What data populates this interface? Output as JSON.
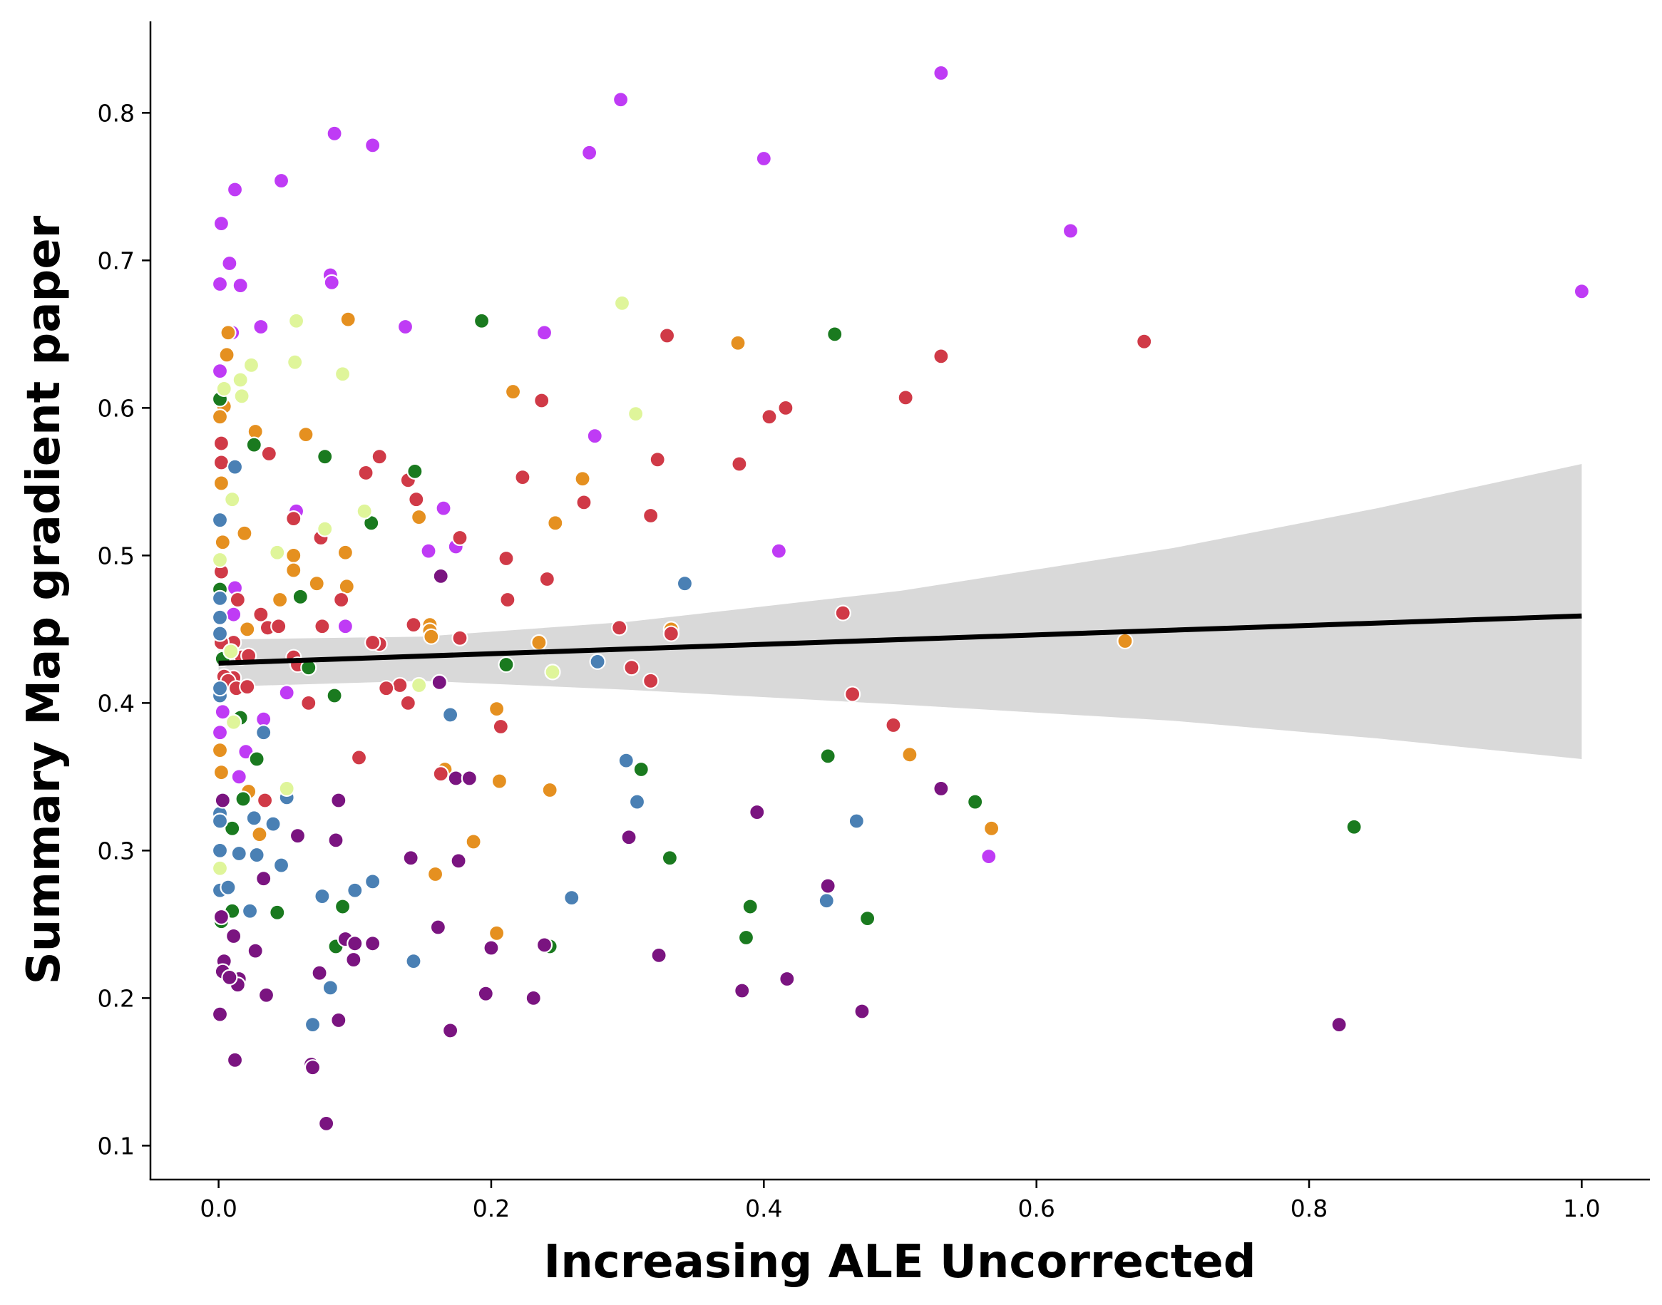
{
  "chart_data": {
    "type": "scatter",
    "xlabel": "Increasing ALE Uncorrected",
    "ylabel": "Summary Map gradient paper",
    "xlim": [
      -0.05,
      1.05
    ],
    "ylim": [
      0.077,
      0.862
    ],
    "x_ticks": [
      "0.0",
      "0.2",
      "0.4",
      "0.6",
      "0.8",
      "1.0"
    ],
    "y_ticks": [
      "0.1",
      "0.2",
      "0.3",
      "0.4",
      "0.5",
      "0.6",
      "0.7",
      "0.8"
    ],
    "grid": false,
    "legend": "none",
    "regression": {
      "line": [
        [
          0.0,
          0.427
        ],
        [
          1.0,
          0.459
        ]
      ],
      "ci_upper": [
        [
          0.0,
          0.443
        ],
        [
          0.15,
          0.445
        ],
        [
          0.3,
          0.455
        ],
        [
          0.5,
          0.476
        ],
        [
          0.7,
          0.505
        ],
        [
          0.85,
          0.532
        ],
        [
          1.0,
          0.562
        ]
      ],
      "ci_lower": [
        [
          0.0,
          0.411
        ],
        [
          0.15,
          0.415
        ],
        [
          0.3,
          0.409
        ],
        [
          0.5,
          0.399
        ],
        [
          0.7,
          0.388
        ],
        [
          0.85,
          0.376
        ],
        [
          1.0,
          0.362
        ]
      ],
      "line_color": "#000000",
      "band_color": "#d9d9d9"
    },
    "series": [
      {
        "color": "#bf3bf5",
        "points": [
          [
            0.53,
            0.827
          ],
          [
            0.295,
            0.809
          ],
          [
            0.085,
            0.786
          ],
          [
            0.113,
            0.778
          ],
          [
            0.272,
            0.773
          ],
          [
            0.4,
            0.769
          ],
          [
            0.012,
            0.748
          ],
          [
            0.046,
            0.754
          ],
          [
            0.002,
            0.725
          ],
          [
            0.625,
            0.72
          ],
          [
            0.008,
            0.698
          ],
          [
            1.0,
            0.679
          ],
          [
            0.082,
            0.69
          ],
          [
            0.083,
            0.685
          ],
          [
            0.001,
            0.684
          ],
          [
            0.016,
            0.683
          ],
          [
            0.01,
            0.651
          ],
          [
            0.031,
            0.655
          ],
          [
            0.137,
            0.655
          ],
          [
            0.239,
            0.651
          ],
          [
            0.001,
            0.625
          ],
          [
            0.276,
            0.581
          ],
          [
            0.165,
            0.532
          ],
          [
            0.057,
            0.53
          ],
          [
            0.154,
            0.503
          ],
          [
            0.174,
            0.506
          ],
          [
            0.411,
            0.503
          ],
          [
            0.012,
            0.478
          ],
          [
            0.093,
            0.452
          ],
          [
            0.011,
            0.46
          ],
          [
            0.05,
            0.407
          ],
          [
            0.003,
            0.394
          ],
          [
            0.001,
            0.38
          ],
          [
            0.033,
            0.389
          ],
          [
            0.02,
            0.367
          ],
          [
            0.565,
            0.296
          ],
          [
            0.015,
            0.35
          ]
        ]
      },
      {
        "color": "#e59020",
        "points": [
          [
            0.007,
            0.651
          ],
          [
            0.381,
            0.644
          ],
          [
            0.095,
            0.66
          ],
          [
            0.006,
            0.636
          ],
          [
            0.216,
            0.611
          ],
          [
            0.004,
            0.601
          ],
          [
            0.001,
            0.594
          ],
          [
            0.027,
            0.584
          ],
          [
            0.064,
            0.582
          ],
          [
            0.267,
            0.552
          ],
          [
            0.002,
            0.549
          ],
          [
            0.019,
            0.515
          ],
          [
            0.147,
            0.526
          ],
          [
            0.247,
            0.522
          ],
          [
            0.055,
            0.5
          ],
          [
            0.093,
            0.502
          ],
          [
            0.003,
            0.509
          ],
          [
            0.055,
            0.49
          ],
          [
            0.094,
            0.479
          ],
          [
            0.072,
            0.481
          ],
          [
            0.045,
            0.47
          ],
          [
            0.155,
            0.453
          ],
          [
            0.155,
            0.449
          ],
          [
            0.156,
            0.445
          ],
          [
            0.332,
            0.45
          ],
          [
            0.235,
            0.441
          ],
          [
            0.021,
            0.45
          ],
          [
            0.665,
            0.442
          ],
          [
            0.204,
            0.396
          ],
          [
            0.206,
            0.347
          ],
          [
            0.243,
            0.341
          ],
          [
            0.166,
            0.355
          ],
          [
            0.507,
            0.365
          ],
          [
            0.001,
            0.368
          ],
          [
            0.002,
            0.353
          ],
          [
            0.187,
            0.306
          ],
          [
            0.03,
            0.311
          ],
          [
            0.567,
            0.315
          ],
          [
            0.159,
            0.284
          ],
          [
            0.204,
            0.244
          ],
          [
            0.022,
            0.34
          ]
        ]
      },
      {
        "color": "#d03a47",
        "points": [
          [
            0.679,
            0.645
          ],
          [
            0.329,
            0.649
          ],
          [
            0.53,
            0.635
          ],
          [
            0.504,
            0.607
          ],
          [
            0.237,
            0.605
          ],
          [
            0.416,
            0.6
          ],
          [
            0.404,
            0.594
          ],
          [
            0.002,
            0.576
          ],
          [
            0.037,
            0.569
          ],
          [
            0.118,
            0.567
          ],
          [
            0.322,
            0.565
          ],
          [
            0.382,
            0.562
          ],
          [
            0.002,
            0.563
          ],
          [
            0.108,
            0.556
          ],
          [
            0.223,
            0.553
          ],
          [
            0.139,
            0.551
          ],
          [
            0.145,
            0.538
          ],
          [
            0.268,
            0.536
          ],
          [
            0.317,
            0.527
          ],
          [
            0.055,
            0.525
          ],
          [
            0.177,
            0.512
          ],
          [
            0.075,
            0.512
          ],
          [
            0.211,
            0.498
          ],
          [
            0.241,
            0.484
          ],
          [
            0.002,
            0.489
          ],
          [
            0.212,
            0.47
          ],
          [
            0.09,
            0.47
          ],
          [
            0.458,
            0.461
          ],
          [
            0.014,
            0.47
          ],
          [
            0.031,
            0.46
          ],
          [
            0.036,
            0.451
          ],
          [
            0.044,
            0.452
          ],
          [
            0.076,
            0.452
          ],
          [
            0.143,
            0.453
          ],
          [
            0.294,
            0.451
          ],
          [
            0.332,
            0.447
          ],
          [
            0.177,
            0.444
          ],
          [
            0.118,
            0.44
          ],
          [
            0.113,
            0.441
          ],
          [
            0.011,
            0.441
          ],
          [
            0.002,
            0.441
          ],
          [
            0.017,
            0.431
          ],
          [
            0.055,
            0.431
          ],
          [
            0.058,
            0.426
          ],
          [
            0.011,
            0.417
          ],
          [
            0.004,
            0.418
          ],
          [
            0.317,
            0.415
          ],
          [
            0.162,
            0.414
          ],
          [
            0.133,
            0.412
          ],
          [
            0.123,
            0.41
          ],
          [
            0.007,
            0.415
          ],
          [
            0.013,
            0.41
          ],
          [
            0.021,
            0.411
          ],
          [
            0.465,
            0.406
          ],
          [
            0.066,
            0.4
          ],
          [
            0.139,
            0.4
          ],
          [
            0.303,
            0.424
          ],
          [
            0.495,
            0.385
          ],
          [
            0.207,
            0.384
          ],
          [
            0.103,
            0.363
          ],
          [
            0.163,
            0.352
          ],
          [
            0.034,
            0.334
          ],
          [
            0.022,
            0.432
          ]
        ]
      },
      {
        "color": "#1a7a1f",
        "points": [
          [
            0.193,
            0.659
          ],
          [
            0.452,
            0.65
          ],
          [
            0.001,
            0.606
          ],
          [
            0.026,
            0.575
          ],
          [
            0.078,
            0.567
          ],
          [
            0.144,
            0.557
          ],
          [
            0.112,
            0.522
          ],
          [
            0.06,
            0.472
          ],
          [
            0.001,
            0.477
          ],
          [
            0.066,
            0.424
          ],
          [
            0.211,
            0.426
          ],
          [
            0.085,
            0.405
          ],
          [
            0.016,
            0.39
          ],
          [
            0.028,
            0.362
          ],
          [
            0.447,
            0.364
          ],
          [
            0.31,
            0.355
          ],
          [
            0.555,
            0.333
          ],
          [
            0.018,
            0.335
          ],
          [
            0.01,
            0.315
          ],
          [
            0.331,
            0.295
          ],
          [
            0.833,
            0.316
          ],
          [
            0.39,
            0.262
          ],
          [
            0.091,
            0.262
          ],
          [
            0.043,
            0.258
          ],
          [
            0.01,
            0.259
          ],
          [
            0.476,
            0.254
          ],
          [
            0.387,
            0.241
          ],
          [
            0.243,
            0.235
          ],
          [
            0.086,
            0.235
          ],
          [
            0.002,
            0.252
          ],
          [
            0.003,
            0.43
          ]
        ]
      },
      {
        "color": "#4a80b4",
        "points": [
          [
            0.342,
            0.481
          ],
          [
            0.278,
            0.428
          ],
          [
            0.001,
            0.524
          ],
          [
            0.001,
            0.471
          ],
          [
            0.001,
            0.458
          ],
          [
            0.001,
            0.447
          ],
          [
            0.001,
            0.405
          ],
          [
            0.033,
            0.38
          ],
          [
            0.17,
            0.392
          ],
          [
            0.012,
            0.56
          ],
          [
            0.299,
            0.361
          ],
          [
            0.307,
            0.333
          ],
          [
            0.05,
            0.336
          ],
          [
            0.001,
            0.325
          ],
          [
            0.001,
            0.32
          ],
          [
            0.026,
            0.322
          ],
          [
            0.04,
            0.318
          ],
          [
            0.468,
            0.32
          ],
          [
            0.001,
            0.3
          ],
          [
            0.015,
            0.298
          ],
          [
            0.028,
            0.297
          ],
          [
            0.046,
            0.29
          ],
          [
            0.113,
            0.279
          ],
          [
            0.1,
            0.273
          ],
          [
            0.001,
            0.273
          ],
          [
            0.007,
            0.275
          ],
          [
            0.076,
            0.269
          ],
          [
            0.259,
            0.268
          ],
          [
            0.446,
            0.266
          ],
          [
            0.023,
            0.259
          ],
          [
            0.143,
            0.225
          ],
          [
            0.082,
            0.207
          ],
          [
            0.069,
            0.182
          ],
          [
            0.001,
            0.41
          ]
        ]
      },
      {
        "color": "#dff59a",
        "points": [
          [
            0.296,
            0.671
          ],
          [
            0.057,
            0.659
          ],
          [
            0.056,
            0.631
          ],
          [
            0.024,
            0.629
          ],
          [
            0.091,
            0.623
          ],
          [
            0.016,
            0.619
          ],
          [
            0.004,
            0.613
          ],
          [
            0.017,
            0.608
          ],
          [
            0.306,
            0.596
          ],
          [
            0.01,
            0.538
          ],
          [
            0.107,
            0.53
          ],
          [
            0.078,
            0.518
          ],
          [
            0.043,
            0.502
          ],
          [
            0.001,
            0.497
          ],
          [
            0.245,
            0.421
          ],
          [
            0.147,
            0.412
          ],
          [
            0.011,
            0.387
          ],
          [
            0.05,
            0.342
          ],
          [
            0.001,
            0.288
          ],
          [
            0.009,
            0.435
          ]
        ]
      },
      {
        "color": "#7a1480",
        "points": [
          [
            0.163,
            0.486
          ],
          [
            0.162,
            0.414
          ],
          [
            0.174,
            0.349
          ],
          [
            0.184,
            0.349
          ],
          [
            0.395,
            0.326
          ],
          [
            0.53,
            0.342
          ],
          [
            0.088,
            0.334
          ],
          [
            0.003,
            0.334
          ],
          [
            0.058,
            0.31
          ],
          [
            0.086,
            0.307
          ],
          [
            0.301,
            0.309
          ],
          [
            0.141,
            0.295
          ],
          [
            0.176,
            0.293
          ],
          [
            0.033,
            0.281
          ],
          [
            0.447,
            0.276
          ],
          [
            0.161,
            0.248
          ],
          [
            0.011,
            0.242
          ],
          [
            0.093,
            0.24
          ],
          [
            0.1,
            0.237
          ],
          [
            0.113,
            0.237
          ],
          [
            0.239,
            0.236
          ],
          [
            0.2,
            0.234
          ],
          [
            0.027,
            0.232
          ],
          [
            0.323,
            0.229
          ],
          [
            0.099,
            0.226
          ],
          [
            0.004,
            0.225
          ],
          [
            0.074,
            0.217
          ],
          [
            0.003,
            0.218
          ],
          [
            0.015,
            0.213
          ],
          [
            0.417,
            0.213
          ],
          [
            0.014,
            0.209
          ],
          [
            0.196,
            0.203
          ],
          [
            0.035,
            0.202
          ],
          [
            0.231,
            0.2
          ],
          [
            0.384,
            0.205
          ],
          [
            0.472,
            0.191
          ],
          [
            0.001,
            0.189
          ],
          [
            0.088,
            0.185
          ],
          [
            0.17,
            0.178
          ],
          [
            0.822,
            0.182
          ],
          [
            0.012,
            0.158
          ],
          [
            0.068,
            0.155
          ],
          [
            0.069,
            0.153
          ],
          [
            0.079,
            0.115
          ],
          [
            0.002,
            0.255
          ],
          [
            0.008,
            0.214
          ]
        ]
      }
    ]
  }
}
